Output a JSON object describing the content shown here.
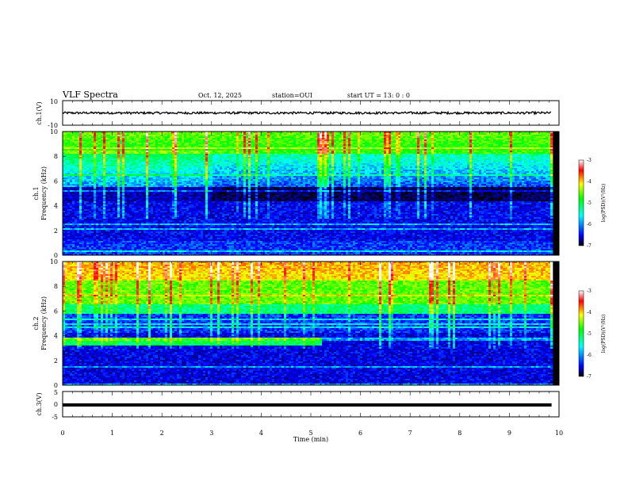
{
  "header": {
    "title": "VLF Spectra",
    "date": "Oct. 12, 2025",
    "station": "station=OUI",
    "start_ut": "start  UT =  13: 0  : 0"
  },
  "chart_data": [
    {
      "type": "line",
      "id": "ch1-waveform",
      "ylabel": "ch.1(V)",
      "ylim": [
        -10,
        10
      ],
      "yticks": [
        "10",
        "-10"
      ],
      "xlim": [
        0,
        10
      ],
      "data_extent_min": [
        0,
        9.85
      ],
      "baseline_value": 0
    },
    {
      "type": "heatmap",
      "id": "ch1-spectrogram",
      "ylabel_1": "ch.1",
      "ylabel_2": "Frequency (kHz)",
      "ylim": [
        0,
        10
      ],
      "yticks": [
        "0",
        "2",
        "4",
        "6",
        "8",
        "10"
      ],
      "xlim": [
        0,
        10
      ],
      "colorbar": {
        "range": [
          -7,
          -3
        ],
        "ticks": [
          "-3",
          "-4",
          "-5",
          "-6",
          "-7"
        ],
        "label": "log(PSD)(V²/Hz)"
      }
    },
    {
      "type": "heatmap",
      "id": "ch2-spectrogram",
      "ylabel_1": "ch.2",
      "ylabel_2": "Frequency (kHz)",
      "ylim": [
        0,
        10
      ],
      "yticks": [
        "0",
        "2",
        "4",
        "6",
        "8",
        "10"
      ],
      "xlim": [
        0,
        10
      ],
      "colorbar": {
        "range": [
          -7,
          -3
        ],
        "ticks": [
          "-3",
          "-4",
          "-5",
          "-6",
          "-7"
        ],
        "label": "log(PSD)(V²/Hz)"
      }
    },
    {
      "type": "line",
      "id": "ch3-waveform",
      "ylabel": "ch.3(V)",
      "ylim": [
        -5,
        5
      ],
      "yticks": [
        "5",
        "0",
        "-5"
      ],
      "xlim": [
        0,
        10
      ],
      "baseline_value": -0.3
    }
  ],
  "xaxis": {
    "label": "Time  (min)",
    "ticks": [
      "0",
      "1",
      "2",
      "3",
      "4",
      "5",
      "6",
      "7",
      "8",
      "9",
      "10"
    ]
  },
  "colors": {
    "spectrogram_scale": [
      "#000000",
      "#0000ff",
      "#00ffff",
      "#00ff00",
      "#ffff00",
      "#ff0000",
      "#ffffff"
    ]
  }
}
